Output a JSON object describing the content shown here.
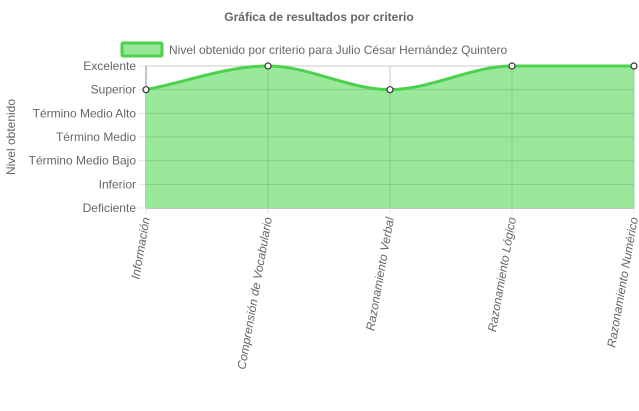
{
  "chart_data": {
    "type": "area",
    "title": "Gráfica de resultados por criterio",
    "ylabel": "Nivel obtenido",
    "xlabel": "",
    "categories": [
      "Información",
      "Comprensión de Vocabulario",
      "Razonamiento Verbal",
      "Razonamiento Lógico",
      "Razonamiento Numérico"
    ],
    "y_levels": [
      "Deficiente",
      "Inferior",
      "Término Medio Bajo",
      "Término Medio",
      "Término Medio Alto",
      "Superior",
      "Excelente"
    ],
    "series": [
      {
        "name": "Nivel obtenido por criterio para Julio César Hernández Quintero",
        "values": [
          "Superior",
          "Excelente",
          "Superior",
          "Excelente",
          "Excelente"
        ]
      }
    ],
    "grid": true,
    "legend_position": "top",
    "colors": {
      "line": "#4cd14c",
      "fill": "#98e898",
      "grid": "#e4e4e4",
      "text": "#666666",
      "point_fill": "#ffffff",
      "point_stroke": "#333333"
    }
  }
}
